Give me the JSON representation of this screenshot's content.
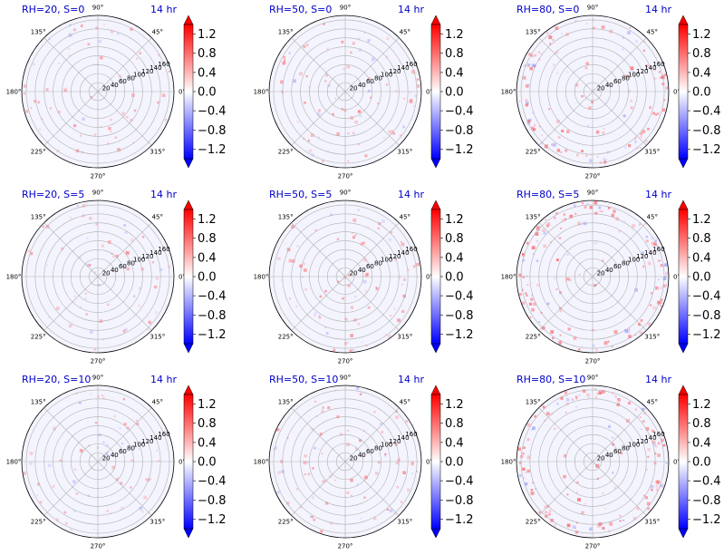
{
  "chart_data": {
    "type": "heatmap",
    "projection": "polar",
    "layout": {
      "rows": 3,
      "cols": 3
    },
    "panels": [
      {
        "title": "RH=20, S=0",
        "time": "14 hr",
        "RH": 20,
        "S": 0,
        "intensity": 0.15
      },
      {
        "title": "RH=50, S=0",
        "time": "14 hr",
        "RH": 50,
        "S": 0,
        "intensity": 0.3
      },
      {
        "title": "RH=80, S=0",
        "time": "14 hr",
        "RH": 80,
        "S": 0,
        "intensity": 0.6
      },
      {
        "title": "RH=20, S=5",
        "time": "14 hr",
        "RH": 20,
        "S": 5,
        "intensity": 0.15
      },
      {
        "title": "RH=50, S=5",
        "time": "14 hr",
        "RH": 50,
        "S": 5,
        "intensity": 0.3
      },
      {
        "title": "RH=80, S=5",
        "time": "14 hr",
        "RH": 80,
        "S": 5,
        "intensity": 0.7
      },
      {
        "title": "RH=20, S=10",
        "time": "14 hr",
        "RH": 20,
        "S": 10,
        "intensity": 0.15
      },
      {
        "title": "RH=50, S=10",
        "time": "14 hr",
        "RH": 50,
        "S": 10,
        "intensity": 0.3
      },
      {
        "title": "RH=80, S=10",
        "time": "14 hr",
        "RH": 80,
        "S": 10,
        "intensity": 0.7
      }
    ],
    "angle_ticks": [
      0,
      45,
      90,
      135,
      180,
      225,
      270,
      315
    ],
    "angle_tick_labels": [
      "0°",
      "45°",
      "90°",
      "135°",
      "180°",
      "225°",
      "270°",
      "315°"
    ],
    "radial_ticks": [
      20,
      40,
      60,
      80,
      100,
      120,
      140,
      160
    ],
    "radial_tick_labels": [
      "20",
      "40",
      "60",
      "80",
      "100",
      "120",
      "140",
      "160"
    ],
    "rlim": [
      0,
      170
    ],
    "colorbar": {
      "colormap": "bwr",
      "vmin": -1.4,
      "vmax": 1.4,
      "extend": "both",
      "ticks": [
        -1.2,
        -0.8,
        -0.4,
        0.0,
        0.4,
        0.8,
        1.2
      ],
      "tick_labels": [
        "−1.2",
        "−0.8",
        "−0.4",
        "0.0",
        "0.4",
        "0.8",
        "1.2"
      ]
    },
    "colors": {
      "title": "#0000cc",
      "grid": "#b0b0b0",
      "positive": "#ff0000",
      "negative": "#0000ff"
    }
  }
}
